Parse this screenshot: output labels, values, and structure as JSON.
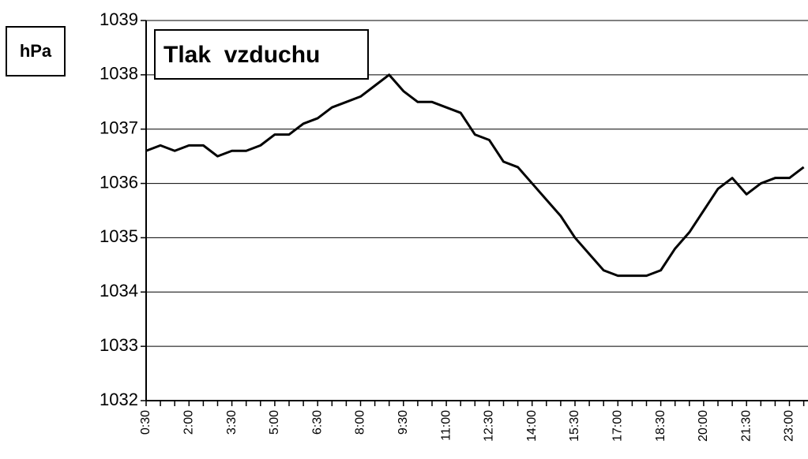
{
  "chart_data": {
    "type": "line",
    "title": "Tlak  vzduchu",
    "y_label": "hPa",
    "categories": [
      "0:30",
      null,
      null,
      "2:00",
      null,
      null,
      "3:30",
      null,
      null,
      "5:00",
      null,
      null,
      "6:30",
      null,
      null,
      "8:00",
      null,
      null,
      "9:30",
      null,
      null,
      "11:00",
      null,
      null,
      "12:30",
      null,
      null,
      "14:00",
      null,
      null,
      "15:30",
      null,
      null,
      "17:00",
      null,
      null,
      "18:30",
      null,
      null,
      "20:00",
      null,
      null,
      "21:30",
      null,
      null,
      "23:00",
      null
    ],
    "series": [
      {
        "name": "Tlak vzduchu",
        "color": "#000000",
        "values": [
          1036.6,
          1036.7,
          1036.6,
          1036.7,
          1036.7,
          1036.5,
          1036.6,
          1036.6,
          1036.7,
          1036.9,
          1036.9,
          1037.1,
          1037.2,
          1037.4,
          1037.5,
          1037.6,
          1037.8,
          1038.0,
          1037.7,
          1037.5,
          1037.5,
          1037.4,
          1037.3,
          1036.9,
          1036.8,
          1036.4,
          1036.3,
          1036.0,
          1035.7,
          1035.4,
          1035.0,
          1034.7,
          1034.4,
          1034.3,
          1034.3,
          1034.3,
          1034.4,
          1034.8,
          1035.1,
          1035.5,
          1035.9,
          1036.1,
          1035.8,
          1036.0,
          1036.1,
          1036.1,
          1036.3
        ]
      }
    ],
    "ylim": [
      1032,
      1039
    ],
    "yticks": [
      1032,
      1033,
      1034,
      1035,
      1036,
      1037,
      1038,
      1039
    ],
    "grid": true
  }
}
